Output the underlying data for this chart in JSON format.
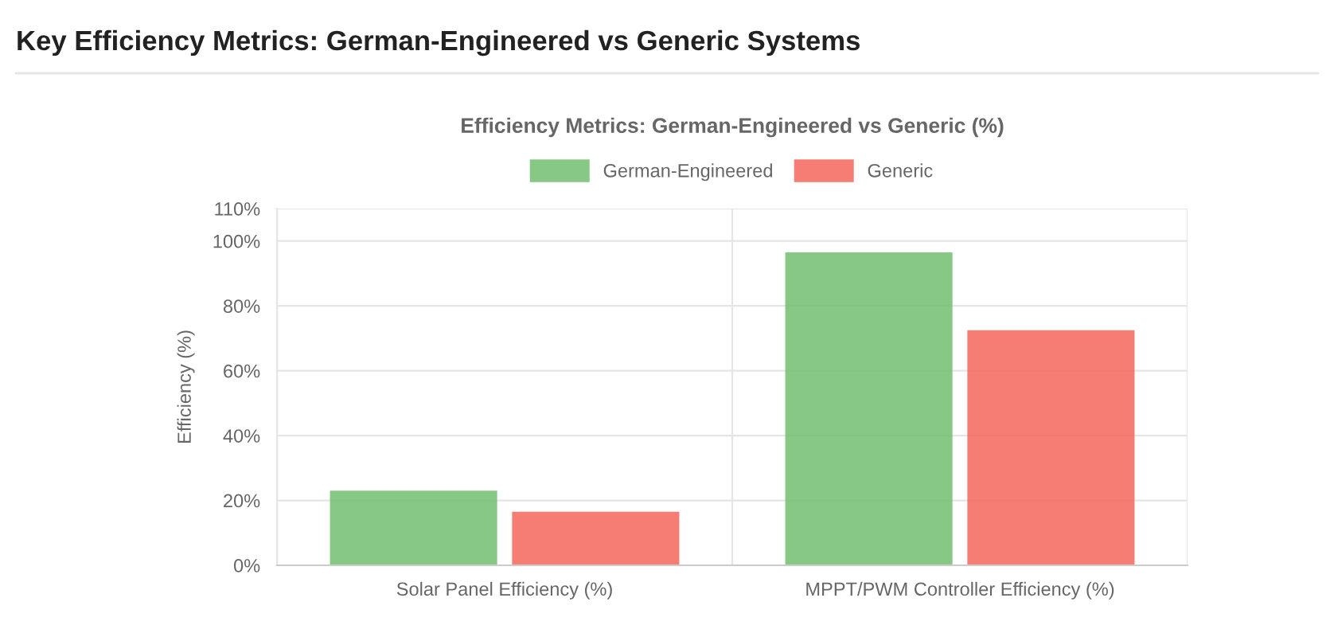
{
  "chart_data": {
    "type": "bar",
    "title": "Key Efficiency Metrics: German-Engineered vs Generic Systems",
    "subtitle": "Efficiency Metrics: German-Engineered vs Generic (%)",
    "ylabel": "Efficiency (%)",
    "categories": [
      "Solar Panel Efficiency (%)",
      "MPPT/PWM Controller Efficiency (%)"
    ],
    "series": [
      {
        "name": "German-Engineered",
        "color": "#72bf6f",
        "values": [
          22.5,
          96
        ]
      },
      {
        "name": "Generic",
        "color": "#f5675c",
        "values": [
          16,
          72
        ]
      }
    ],
    "ylim": [
      0,
      110
    ],
    "yticks": [
      {
        "value": 0,
        "label": "0%"
      },
      {
        "value": 20,
        "label": "20%"
      },
      {
        "value": 40,
        "label": "40%"
      },
      {
        "value": 60,
        "label": "60%"
      },
      {
        "value": 80,
        "label": "80%"
      },
      {
        "value": 100,
        "label": "100%"
      },
      {
        "value": 110,
        "label": "110%"
      }
    ],
    "grid": true,
    "legend": "top"
  }
}
